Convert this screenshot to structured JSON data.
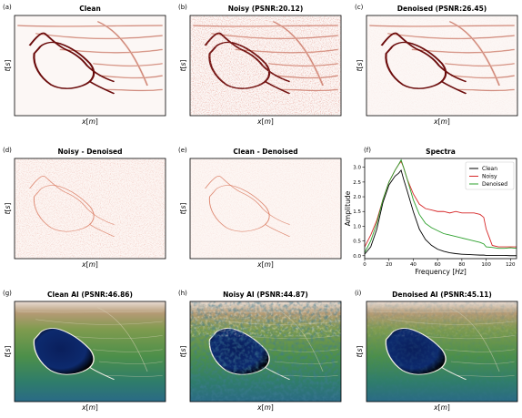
{
  "figure": {
    "panels": [
      {
        "id": "a",
        "index_label": "(a)",
        "title": "Clean",
        "xlabel": "x[m]",
        "ylabel": "t[s]",
        "colormap": "seismic-red",
        "noise_level": 0
      },
      {
        "id": "b",
        "index_label": "(b)",
        "title": "Noisy (PSNR:20.12)",
        "xlabel": "x[m]",
        "ylabel": "t[s]",
        "colormap": "seismic-red",
        "noise_level": 1
      },
      {
        "id": "c",
        "index_label": "(c)",
        "title": "Denoised (PSNR:26.45)",
        "xlabel": "x[m]",
        "ylabel": "t[s]",
        "colormap": "seismic-red",
        "noise_level": 0.15
      },
      {
        "id": "d",
        "index_label": "(d)",
        "title": "Noisy - Denoised",
        "xlabel": "x[m]",
        "ylabel": "t[s]",
        "colormap": "residual",
        "noise_level": 0.6
      },
      {
        "id": "e",
        "index_label": "(e)",
        "title": "Clean - Denoised",
        "xlabel": "x[m]",
        "ylabel": "t[s]",
        "colormap": "residual",
        "noise_level": 0.25
      },
      {
        "id": "g",
        "index_label": "(g)",
        "title": "Clean AI (PSNR:46.86)",
        "xlabel": "x[m]",
        "ylabel": "t[s]",
        "colormap": "acoustic-impedance",
        "noise_level": 0
      },
      {
        "id": "h",
        "index_label": "(h)",
        "title": "Noisy AI (PSNR:44.87)",
        "xlabel": "x[m]",
        "ylabel": "t[s]",
        "colormap": "acoustic-impedance",
        "noise_level": 1
      },
      {
        "id": "i",
        "index_label": "(i)",
        "title": "Denoised AI (PSNR:45.11)",
        "xlabel": "x[m]",
        "ylabel": "t[s]",
        "colormap": "acoustic-impedance",
        "noise_level": 0.3
      }
    ]
  },
  "chart_data": {
    "type": "line",
    "index_label": "(f)",
    "title": "Spectra",
    "xlabel": "Frequency [Hz]",
    "ylabel": "Amplitude",
    "xlim": [
      0,
      125
    ],
    "ylim": [
      -0.1,
      3.3
    ],
    "xticks": [
      "0",
      "20",
      "40",
      "60",
      "80",
      "100",
      "120"
    ],
    "yticks": [
      "0.0",
      "0.5",
      "1.0",
      "1.5",
      "2.0",
      "2.5",
      "3.0"
    ],
    "legend_position": "top-right",
    "x": [
      0,
      5,
      10,
      15,
      20,
      25,
      28,
      30,
      32,
      35,
      40,
      45,
      50,
      55,
      60,
      65,
      70,
      75,
      80,
      85,
      90,
      95,
      98,
      100,
      105,
      110,
      115,
      120,
      125
    ],
    "series": [
      {
        "name": "Clean",
        "color": "#000000",
        "values": [
          0.05,
          0.3,
          0.9,
          1.8,
          2.4,
          2.7,
          2.8,
          2.9,
          2.6,
          2.2,
          1.5,
          0.9,
          0.55,
          0.35,
          0.22,
          0.15,
          0.1,
          0.07,
          0.05,
          0.04,
          0.03,
          0.02,
          0.02,
          0.01,
          0.01,
          0.01,
          0.01,
          0.0,
          0.0
        ]
      },
      {
        "name": "Noisy",
        "color": "#d62728",
        "values": [
          0.3,
          0.7,
          1.2,
          1.9,
          2.5,
          2.9,
          3.1,
          3.2,
          3.0,
          2.6,
          2.1,
          1.75,
          1.6,
          1.55,
          1.5,
          1.5,
          1.45,
          1.5,
          1.45,
          1.45,
          1.45,
          1.4,
          1.3,
          0.9,
          0.35,
          0.3,
          0.3,
          0.3,
          0.3
        ]
      },
      {
        "name": "Denoised",
        "color": "#2ca02c",
        "values": [
          0.1,
          0.5,
          1.1,
          1.9,
          2.5,
          2.9,
          3.1,
          3.25,
          3.0,
          2.6,
          1.9,
          1.4,
          1.1,
          0.95,
          0.85,
          0.75,
          0.7,
          0.65,
          0.6,
          0.55,
          0.5,
          0.45,
          0.4,
          0.3,
          0.28,
          0.25,
          0.25,
          0.27,
          0.25
        ]
      }
    ]
  }
}
